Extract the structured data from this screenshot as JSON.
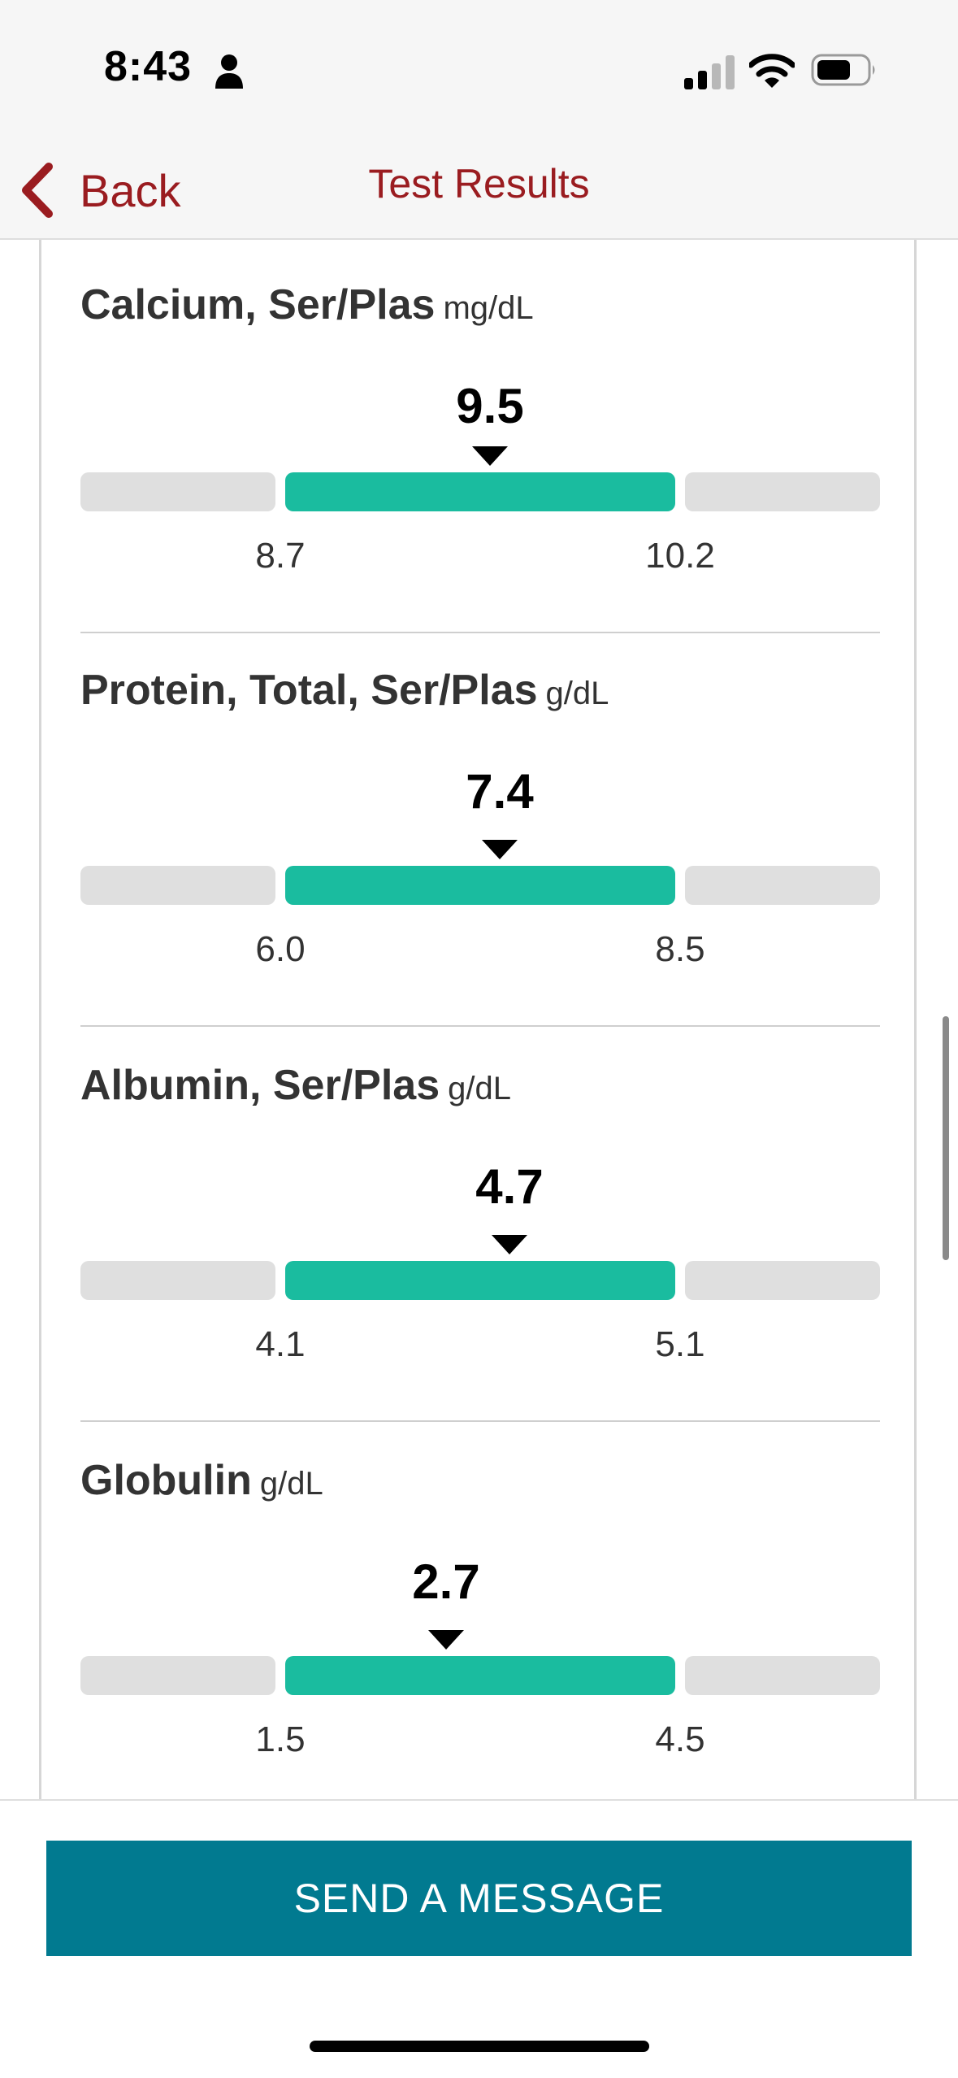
{
  "status_bar": {
    "time": "8:43"
  },
  "nav": {
    "back_label": "Back",
    "title": "Test Results"
  },
  "colors": {
    "accent": "#9a1c20",
    "normal_range": "#1abc9f",
    "out_of_range": "#dfdfdf",
    "button": "#017a90"
  },
  "results": [
    {
      "name": "Calcium, Ser/Plas",
      "unit": "mg/dL",
      "value": "9.5",
      "low": "8.7",
      "high": "10.2"
    },
    {
      "name": "Protein, Total, Ser/Plas",
      "unit": "g/dL",
      "value": "7.4",
      "low": "6.0",
      "high": "8.5"
    },
    {
      "name": "Albumin, Ser/Plas",
      "unit": "g/dL",
      "value": "4.7",
      "low": "4.1",
      "high": "5.1"
    },
    {
      "name": "Globulin",
      "unit": "g/dL",
      "value": "2.7",
      "low": "1.5",
      "high": "4.5"
    }
  ],
  "footer": {
    "send_label": "SEND A MESSAGE"
  }
}
